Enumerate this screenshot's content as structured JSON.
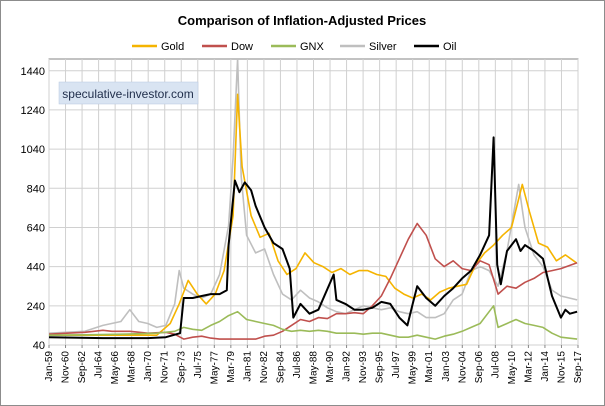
{
  "chart_data": {
    "type": "line",
    "title": "Comparison of Inflation-Adjusted Prices",
    "watermark": "speculative-investor.com",
    "xlabel": "",
    "ylabel": "",
    "ylim": [
      40,
      1500
    ],
    "y_ticks": [
      40,
      240,
      440,
      640,
      840,
      1040,
      1240,
      1440
    ],
    "y_tick_labels": [
      "40",
      "240",
      "440",
      "640",
      "840",
      "1040",
      "1240",
      "1440"
    ],
    "x_range": [
      1959.0,
      2017.9
    ],
    "x_tick_labels": [
      "Jan-59",
      "Nov-60",
      "Sep-62",
      "Jul-64",
      "May-66",
      "Mar-68",
      "Jan-70",
      "Nov-71",
      "Sep-73",
      "Jul-75",
      "May-77",
      "Mar-79",
      "Jan-81",
      "Nov-82",
      "Sep-84",
      "Jul-86",
      "May-88",
      "Mar-90",
      "Jan-92",
      "Nov-93",
      "Sep-95",
      "Jul-97",
      "May-99",
      "Mar-01",
      "Jan-03",
      "Nov-04",
      "Sep-06",
      "Jul-08",
      "May-10",
      "Mar-12",
      "Jan-14",
      "Nov-15",
      "Sep-17"
    ],
    "legend_position": "top",
    "grid": true,
    "series": [
      {
        "name": "Gold",
        "color": "#f5b400",
        "x": [
          1959,
          1965,
          1971,
          1972.5,
          1973.5,
          1974.5,
          1975.5,
          1976.5,
          1977.5,
          1978.5,
          1979.5,
          1980.0,
          1980.5,
          1981.5,
          1982.5,
          1983.5,
          1984.5,
          1985.5,
          1986.5,
          1987.5,
          1988.5,
          1989.5,
          1990.5,
          1991.5,
          1992.5,
          1993.5,
          1994.5,
          1995.5,
          1996.5,
          1997.5,
          1998.5,
          1999.5,
          2000.5,
          2001.5,
          2002.5,
          2003.5,
          2004.5,
          2005.5,
          2006.5,
          2007.5,
          2008.5,
          2009.5,
          2010.5,
          2011.7,
          2012.5,
          2013.5,
          2014.5,
          2015.5,
          2016.5,
          2017.7
        ],
        "y": [
          90,
          90,
          90,
          150,
          250,
          370,
          300,
          250,
          300,
          420,
          700,
          1320,
          950,
          700,
          590,
          610,
          470,
          400,
          430,
          510,
          460,
          440,
          410,
          430,
          400,
          420,
          420,
          400,
          390,
          330,
          300,
          280,
          300,
          270,
          310,
          330,
          340,
          350,
          450,
          510,
          550,
          600,
          640,
          860,
          720,
          560,
          540,
          470,
          500,
          460
        ]
      },
      {
        "name": "Dow",
        "color": "#c0504d",
        "x": [
          1959,
          1961,
          1963,
          1965,
          1966,
          1968,
          1970,
          1972,
          1973,
          1974,
          1975,
          1976,
          1977,
          1978,
          1979,
          1980,
          1981,
          1982,
          1983,
          1984,
          1985,
          1986,
          1987,
          1988,
          1989,
          1990,
          1991,
          1992,
          1993,
          1994,
          1995,
          1996,
          1997,
          1998,
          1999,
          2000,
          2001,
          2002,
          2003,
          2004,
          2005,
          2006,
          2007,
          2008,
          2009,
          2010,
          2011,
          2012,
          2013,
          2014,
          2015,
          2016,
          2017.8
        ],
        "y": [
          95,
          100,
          105,
          115,
          110,
          110,
          100,
          105,
          95,
          70,
          80,
          85,
          75,
          70,
          70,
          70,
          70,
          70,
          85,
          90,
          110,
          140,
          170,
          160,
          180,
          175,
          200,
          200,
          205,
          200,
          240,
          290,
          380,
          480,
          580,
          660,
          600,
          480,
          440,
          470,
          430,
          420,
          470,
          450,
          300,
          340,
          330,
          360,
          380,
          410,
          420,
          430,
          460
        ]
      },
      {
        "name": "GNX",
        "color": "#9bbb59",
        "x": [
          1959,
          1963,
          1967,
          1971,
          1973,
          1974,
          1975,
          1976,
          1977,
          1978,
          1979,
          1980,
          1981,
          1982,
          1983,
          1984,
          1985,
          1986,
          1987,
          1988,
          1989,
          1990,
          1991,
          1992,
          1993,
          1994,
          1995,
          1996,
          1997,
          1998,
          1999,
          2000,
          2001,
          2002,
          2003,
          2004,
          2005,
          2006,
          2007,
          2008.5,
          2009,
          2010,
          2011,
          2012,
          2013,
          2014,
          2015,
          2016,
          2017.8
        ],
        "y": [
          90,
          92,
          95,
          100,
          110,
          130,
          120,
          115,
          140,
          160,
          190,
          210,
          170,
          160,
          150,
          140,
          120,
          110,
          115,
          110,
          115,
          110,
          100,
          100,
          100,
          95,
          100,
          100,
          90,
          80,
          80,
          90,
          80,
          70,
          85,
          95,
          110,
          130,
          150,
          240,
          130,
          150,
          170,
          150,
          140,
          130,
          100,
          80,
          70
        ]
      },
      {
        "name": "Silver",
        "color": "#bfbfbf",
        "x": [
          1959,
          1963,
          1965,
          1967,
          1968,
          1969,
          1970,
          1971,
          1972,
          1973,
          1973.5,
          1974,
          1975,
          1976,
          1977,
          1978,
          1979,
          1979.5,
          1980.0,
          1980.4,
          1981,
          1982,
          1983,
          1984,
          1985,
          1986,
          1987,
          1988,
          1989,
          1990,
          1991,
          1992,
          1993,
          1994,
          1995,
          1996,
          1997,
          1998,
          1999,
          2000,
          2001,
          2002,
          2003,
          2004,
          2005,
          2006,
          2007,
          2008,
          2009,
          2010,
          2011.3,
          2011.8,
          2012,
          2013,
          2014,
          2015,
          2016,
          2017.8
        ],
        "y": [
          100,
          110,
          140,
          160,
          220,
          160,
          150,
          130,
          140,
          250,
          420,
          330,
          300,
          280,
          300,
          400,
          650,
          1000,
          1500,
          900,
          600,
          510,
          530,
          400,
          300,
          270,
          320,
          280,
          260,
          230,
          210,
          200,
          220,
          240,
          230,
          220,
          230,
          210,
          200,
          210,
          180,
          180,
          200,
          270,
          300,
          420,
          440,
          420,
          340,
          520,
          860,
          700,
          640,
          500,
          440,
          320,
          290,
          270
        ]
      },
      {
        "name": "Oil",
        "color": "#000000",
        "x": [
          1959,
          1965,
          1970,
          1972,
          1973.6,
          1974,
          1975,
          1976,
          1977,
          1978,
          1978.8,
          1979,
          1979.7,
          1980.2,
          1980.8,
          1981.5,
          1982,
          1983,
          1984,
          1985,
          1985.8,
          1986.2,
          1987,
          1988,
          1989,
          1990.7,
          1991,
          1992,
          1993,
          1994,
          1995,
          1996,
          1997,
          1998,
          1998.9,
          1999.5,
          2000,
          2001,
          2002,
          2003,
          2004,
          2005,
          2006,
          2007,
          2008.0,
          2008.5,
          2008.9,
          2009.3,
          2010,
          2011,
          2011.5,
          2012,
          2013,
          2014,
          2015,
          2016,
          2016.5,
          2017,
          2017.8
        ],
        "y": [
          80,
          75,
          75,
          80,
          100,
          280,
          280,
          290,
          300,
          300,
          320,
          550,
          880,
          820,
          870,
          830,
          750,
          640,
          560,
          530,
          430,
          180,
          250,
          200,
          220,
          400,
          270,
          250,
          220,
          220,
          230,
          260,
          250,
          180,
          140,
          250,
          340,
          280,
          240,
          290,
          330,
          380,
          420,
          500,
          600,
          1100,
          450,
          350,
          520,
          580,
          520,
          550,
          520,
          480,
          290,
          180,
          220,
          200,
          210
        ]
      }
    ]
  }
}
